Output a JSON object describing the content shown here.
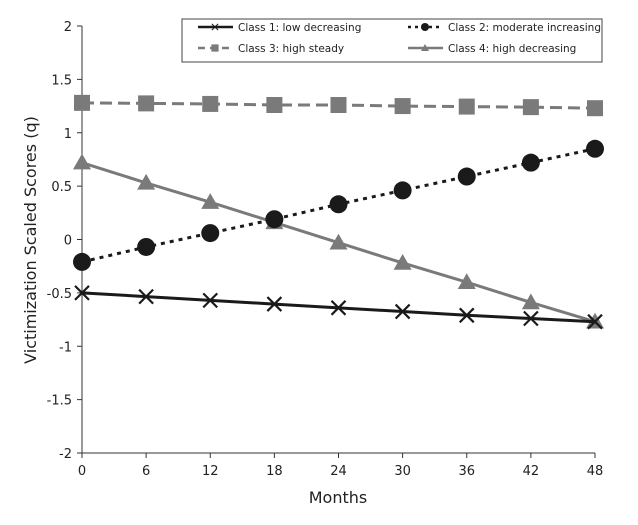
{
  "chart_data": {
    "type": "line",
    "xlabel": "Months",
    "ylabel": "Victimization Scaled Scores (q)",
    "x": [
      0,
      6,
      12,
      18,
      24,
      30,
      36,
      42,
      48
    ],
    "xticks": [
      "0",
      "6",
      "12",
      "18",
      "24",
      "30",
      "36",
      "42",
      "48"
    ],
    "ylim": [
      -2,
      2
    ],
    "yticks": [
      "-2",
      "-1.5",
      "-1",
      "-0.5",
      "0",
      "0.5",
      "1",
      "1.5",
      "2"
    ],
    "grid": false,
    "legend_position": "top",
    "series": [
      {
        "name": "Class 1: low decreasing",
        "color": "#1a1a1a",
        "dash": "solid",
        "marker": "x",
        "values": [
          -0.5,
          -0.535,
          -0.57,
          -0.605,
          -0.64,
          -0.675,
          -0.71,
          -0.74,
          -0.77
        ]
      },
      {
        "name": "Class 2: moderate increasing",
        "color": "#1a1a1a",
        "dash": "dotted",
        "marker": "circle",
        "values": [
          -0.21,
          -0.07,
          0.06,
          0.19,
          0.33,
          0.46,
          0.59,
          0.72,
          0.85
        ]
      },
      {
        "name": "Class 3: high steady",
        "color": "#7a7a7a",
        "dash": "dashed",
        "marker": "square",
        "values": [
          1.28,
          1.275,
          1.27,
          1.26,
          1.26,
          1.25,
          1.245,
          1.24,
          1.23
        ]
      },
      {
        "name": "Class 4: high decreasing",
        "color": "#7a7a7a",
        "dash": "solid",
        "marker": "triangle",
        "values": [
          0.72,
          0.53,
          0.35,
          0.16,
          -0.03,
          -0.22,
          -0.4,
          -0.59,
          -0.77
        ]
      }
    ]
  }
}
